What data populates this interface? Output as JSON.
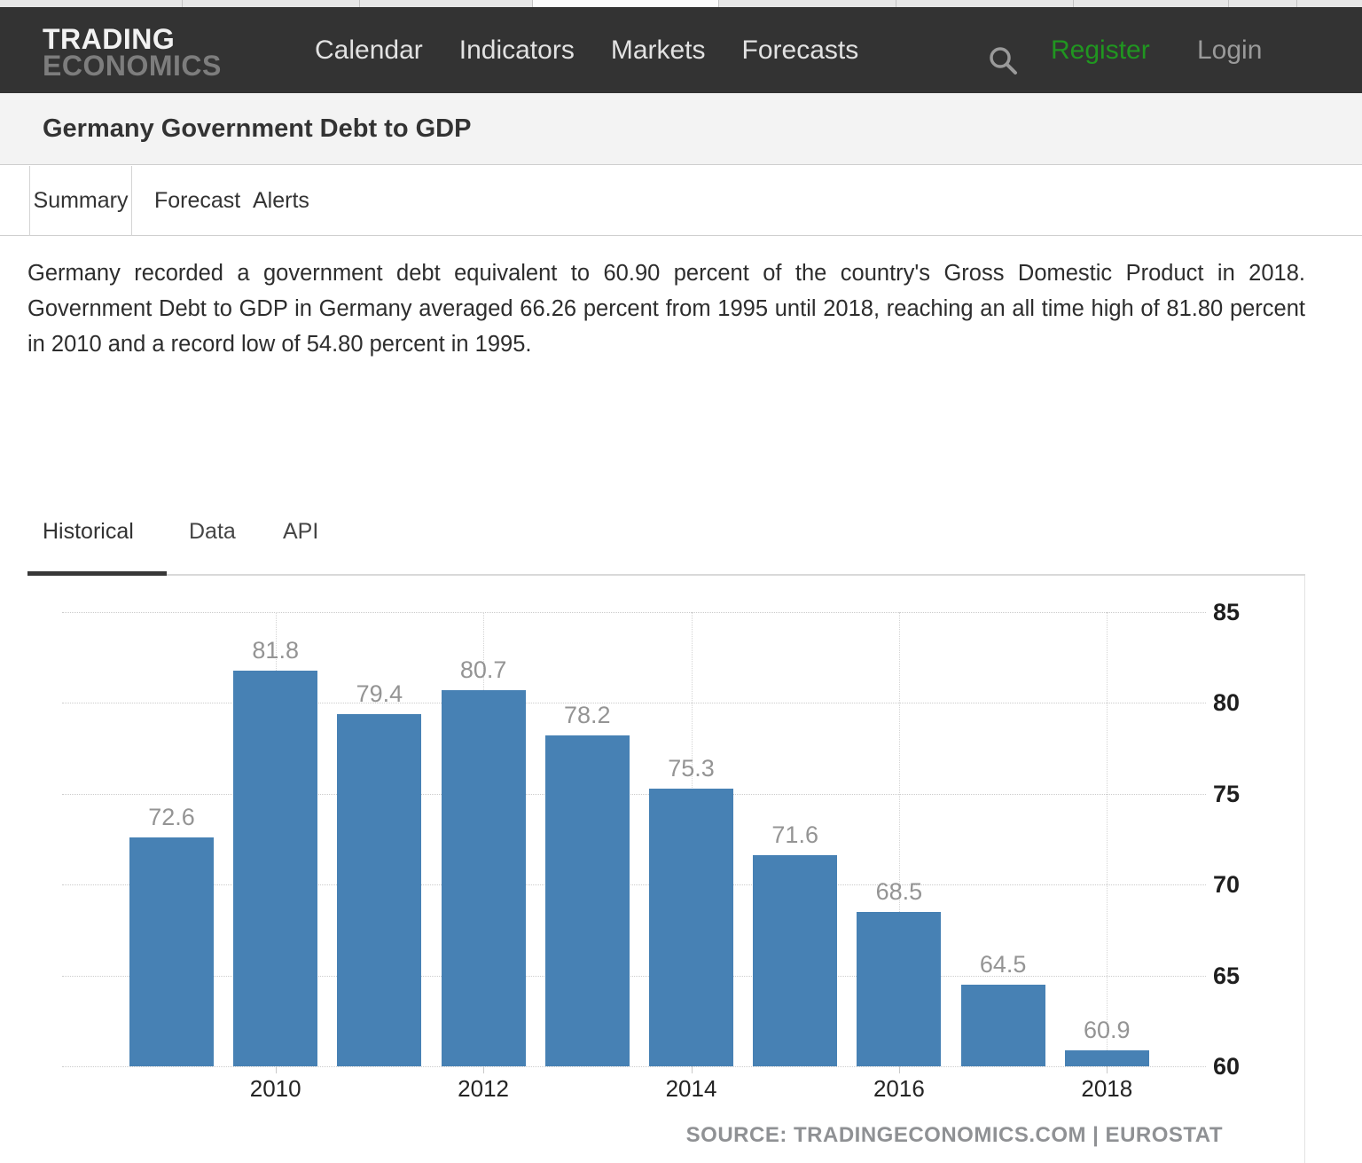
{
  "nav": {
    "logo_line1": "TRADING",
    "logo_line2": "ECONOMICS",
    "items": [
      "Calendar",
      "Indicators",
      "Markets",
      "Forecasts"
    ],
    "register_label": "Register",
    "register_color": "#209620",
    "login_label": "Login"
  },
  "header": {
    "title": "Germany Government Debt to GDP"
  },
  "page_tabs": {
    "active": "Summary",
    "items": [
      "Summary",
      "Forecast",
      "Alerts"
    ]
  },
  "description": "Germany recorded a government debt equivalent to 60.90 percent of the country's Gross Domestic Product in 2018. Government Debt to GDP in Germany averaged 66.26 percent from 1995 until 2018, reaching an all time high of 81.80 percent in 2010 and a record low of 54.80 percent in 1995.",
  "section_tabs": {
    "active": "Historical",
    "items": [
      "Historical",
      "Data",
      "API"
    ]
  },
  "chart_data": {
    "type": "bar",
    "x": [
      2009,
      2010,
      2011,
      2012,
      2013,
      2014,
      2015,
      2016,
      2017,
      2018
    ],
    "values": [
      72.6,
      81.8,
      79.4,
      80.7,
      78.2,
      75.3,
      71.6,
      68.5,
      64.5,
      60.9
    ],
    "xticks": [
      2010,
      2012,
      2014,
      2016,
      2018
    ],
    "yticks": [
      60,
      65,
      70,
      75,
      80,
      85
    ],
    "ylim": [
      60,
      85
    ],
    "title": "",
    "xlabel": "",
    "ylabel": "",
    "y_axis_position": "right",
    "grid": "dotted",
    "legend": "none",
    "bar_color": "#4781b4",
    "value_labels_shown": true,
    "source": "SOURCE: TRADINGECONOMICS.COM | EUROSTAT"
  }
}
